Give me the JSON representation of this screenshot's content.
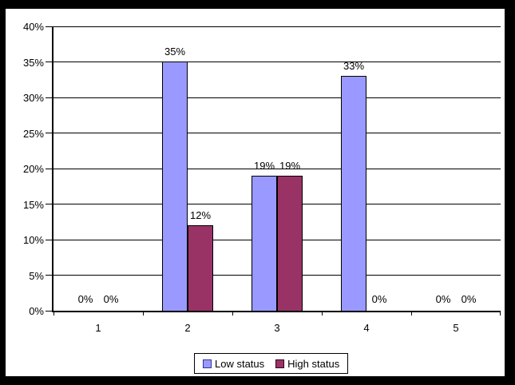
{
  "frame": {
    "background": "#000000",
    "chart_background": "#ffffff"
  },
  "chart_data": {
    "type": "bar",
    "title": "",
    "xlabel": "",
    "ylabel": "",
    "categories": [
      "1",
      "2",
      "3",
      "4",
      "5"
    ],
    "series": [
      {
        "name": "Low status",
        "color": "#9999ff",
        "border_color": "#000000",
        "swatch_border_color": "#333399",
        "values": [
          0,
          35,
          19,
          33,
          0
        ],
        "data_labels": [
          "0%",
          "35%",
          "19%",
          "33%",
          "0%"
        ]
      },
      {
        "name": "High status",
        "color": "#993366",
        "border_color": "#000000",
        "swatch_border_color": "#33001a",
        "values": [
          0,
          12,
          19,
          0,
          0
        ],
        "data_labels": [
          "0%",
          "12%",
          "19%",
          "0%",
          "0%"
        ]
      }
    ],
    "ylim": [
      0,
      40
    ],
    "ytick_step": 5,
    "ytick_labels": [
      "0%",
      "5%",
      "10%",
      "15%",
      "20%",
      "25%",
      "30%",
      "35%",
      "40%"
    ],
    "grid": "horizontal",
    "legend_position": "bottom",
    "data_labels_visible": true
  }
}
